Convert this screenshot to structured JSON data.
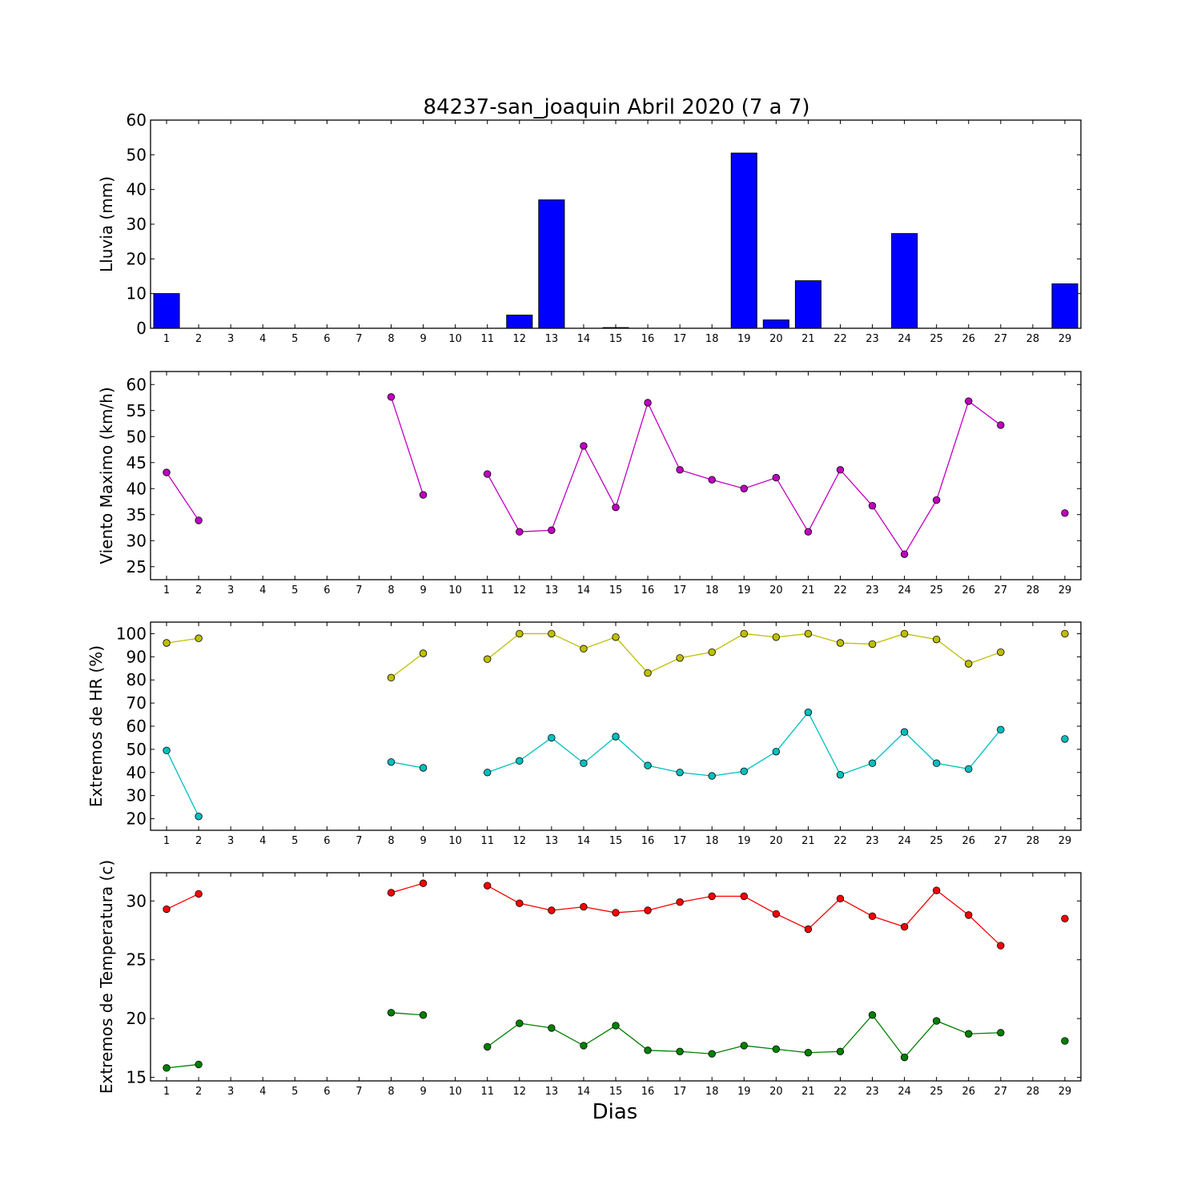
{
  "figure": {
    "title": "84237-san_joaquin Abril 2020  (7 a 7)",
    "xlabel": "Dias"
  },
  "chart_data": [
    {
      "type": "bar",
      "ylabel": "Lluvia (mm)",
      "ylim": [
        0,
        60
      ],
      "yticks": [
        0,
        10,
        20,
        30,
        40,
        50,
        60
      ],
      "x": [
        1,
        2,
        3,
        4,
        5,
        6,
        7,
        8,
        9,
        10,
        11,
        12,
        13,
        14,
        15,
        16,
        17,
        18,
        19,
        20,
        21,
        22,
        23,
        24,
        25,
        26,
        27,
        28,
        29
      ],
      "xlim": [
        0.5,
        29.5
      ],
      "color": "#0000ff",
      "values": [
        10,
        0,
        0,
        0,
        0,
        0,
        0,
        0,
        0,
        0,
        0,
        3.8,
        37,
        0,
        0.2,
        0,
        0,
        0,
        50.5,
        2.4,
        13.7,
        0,
        0,
        27.3,
        0,
        0,
        0,
        0,
        12.8
      ]
    },
    {
      "type": "line",
      "ylabel": "Viento Maximo (km/h)",
      "ylim": [
        22.5,
        62.5
      ],
      "yticks": [
        25,
        30,
        35,
        40,
        45,
        50,
        55,
        60
      ],
      "x": [
        1,
        2,
        3,
        4,
        5,
        6,
        7,
        8,
        9,
        10,
        11,
        12,
        13,
        14,
        15,
        16,
        17,
        18,
        19,
        20,
        21,
        22,
        23,
        24,
        25,
        26,
        27,
        28,
        29
      ],
      "xlim": [
        0.5,
        29.5
      ],
      "series": [
        {
          "color": "#bf00bf",
          "values": [
            43.1,
            33.9,
            null,
            null,
            null,
            null,
            null,
            57.6,
            38.8,
            null,
            42.8,
            31.7,
            32.0,
            48.2,
            36.4,
            56.5,
            43.6,
            41.7,
            40.0,
            42.1,
            31.7,
            43.6,
            36.7,
            27.4,
            37.8,
            56.8,
            52.2,
            null,
            35.3
          ]
        }
      ]
    },
    {
      "type": "line",
      "ylabel": "Extremos de HR (%)",
      "ylim": [
        15,
        105
      ],
      "yticks": [
        20,
        30,
        40,
        50,
        60,
        70,
        80,
        90,
        100
      ],
      "x": [
        1,
        2,
        3,
        4,
        5,
        6,
        7,
        8,
        9,
        10,
        11,
        12,
        13,
        14,
        15,
        16,
        17,
        18,
        19,
        20,
        21,
        22,
        23,
        24,
        25,
        26,
        27,
        28,
        29
      ],
      "xlim": [
        0.5,
        29.5
      ],
      "series": [
        {
          "color": "#bfbf00",
          "values": [
            96,
            98,
            null,
            null,
            null,
            null,
            null,
            81,
            91.5,
            null,
            89,
            100,
            100,
            93.5,
            98.5,
            83,
            89.5,
            92,
            100,
            98.5,
            100,
            96,
            95.5,
            100,
            97.5,
            87,
            92,
            null,
            100
          ]
        },
        {
          "color": "#00bfbf",
          "values": [
            49.5,
            21,
            null,
            null,
            null,
            null,
            null,
            44.5,
            42,
            null,
            40,
            45,
            55,
            44,
            55.5,
            43,
            40,
            38.5,
            40.5,
            49,
            66,
            39,
            44,
            57.5,
            44,
            41.5,
            58.5,
            null,
            54.5
          ]
        }
      ]
    },
    {
      "type": "line",
      "ylabel": "Extremos de Temperatura (c)",
      "ylim": [
        14.7,
        32.4
      ],
      "yticks": [
        15,
        20,
        25,
        30
      ],
      "x": [
        1,
        2,
        3,
        4,
        5,
        6,
        7,
        8,
        9,
        10,
        11,
        12,
        13,
        14,
        15,
        16,
        17,
        18,
        19,
        20,
        21,
        22,
        23,
        24,
        25,
        26,
        27,
        28,
        29
      ],
      "xlim": [
        0.5,
        29.5
      ],
      "series": [
        {
          "color": "#ff0000",
          "values": [
            29.3,
            30.6,
            null,
            null,
            null,
            null,
            null,
            30.7,
            31.5,
            null,
            31.3,
            29.8,
            29.2,
            29.5,
            29.0,
            29.2,
            29.9,
            30.4,
            30.4,
            28.9,
            27.6,
            30.2,
            28.7,
            27.8,
            30.9,
            28.8,
            26.2,
            null,
            28.5
          ]
        },
        {
          "color": "#008000",
          "values": [
            15.8,
            16.1,
            null,
            null,
            null,
            null,
            null,
            20.5,
            20.3,
            null,
            17.6,
            19.6,
            19.2,
            17.7,
            19.4,
            17.3,
            17.2,
            17.0,
            17.7,
            17.4,
            17.1,
            17.2,
            20.3,
            16.7,
            19.8,
            18.7,
            18.8,
            null,
            18.1
          ]
        }
      ]
    }
  ]
}
